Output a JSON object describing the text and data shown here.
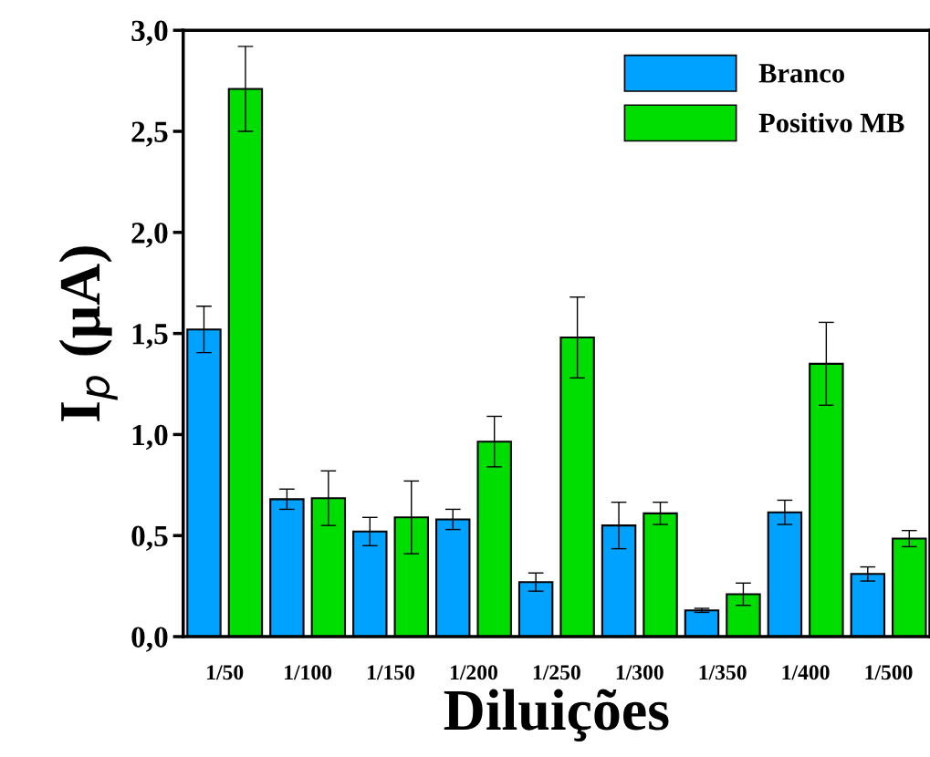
{
  "chart_data": {
    "type": "bar",
    "xlabel": "Diluições",
    "ylabel": "I$_{p}$ (μA)",
    "categories": [
      "1/50",
      "1/100",
      "1/150",
      "1/200",
      "1/250",
      "1/300",
      "1/350",
      "1/400",
      "1/500"
    ],
    "series": [
      {
        "name": "Branco",
        "color": "#00a2ff",
        "values": [
          1.52,
          0.68,
          0.52,
          0.58,
          0.27,
          0.55,
          0.13,
          0.615,
          0.31
        ],
        "errors": [
          0.115,
          0.05,
          0.07,
          0.05,
          0.045,
          0.115,
          0.01,
          0.06,
          0.035
        ]
      },
      {
        "name": "Positivo MB",
        "color": "#00dd00",
        "values": [
          2.71,
          0.685,
          0.59,
          0.965,
          1.48,
          0.61,
          0.21,
          1.35,
          0.485
        ],
        "errors": [
          0.21,
          0.135,
          0.18,
          0.125,
          0.2,
          0.055,
          0.055,
          0.205,
          0.04
        ]
      }
    ],
    "ylim": [
      0,
      3.0
    ],
    "yticks": [
      {
        "value": 0,
        "label": "0,0"
      },
      {
        "value": 0.5,
        "label": "0,5"
      },
      {
        "value": 1.0,
        "label": "1,0"
      },
      {
        "value": 1.5,
        "label": "1,5"
      },
      {
        "value": 2.0,
        "label": "2,0"
      },
      {
        "value": 2.5,
        "label": "2,5"
      },
      {
        "value": 3.0,
        "label": "3,0"
      }
    ],
    "legend": "top right",
    "grid": false
  }
}
